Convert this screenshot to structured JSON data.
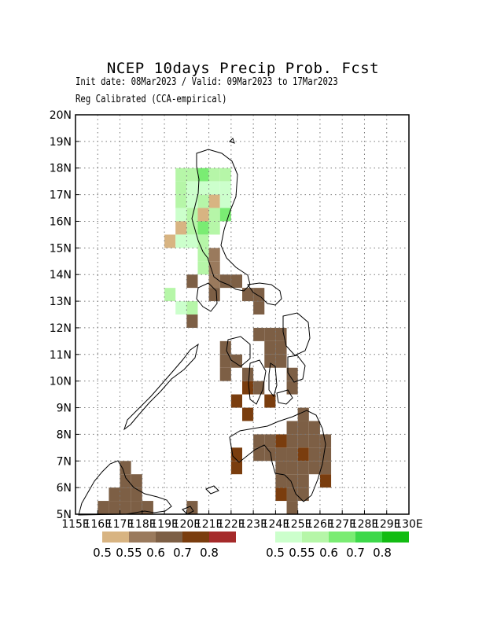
{
  "header": {
    "title": "NCEP 10days Precip Prob. Fcst",
    "subtitle": "Init date: 08Mar2023 / Valid: 09Mar2023 to 17Mar2023",
    "method": "Reg Calibrated (CCA-empirical)"
  },
  "axes": {
    "lon_ticks": [
      "115E",
      "116E",
      "117E",
      "118E",
      "119E",
      "120E",
      "121E",
      "122E",
      "123E",
      "124E",
      "125E",
      "126E",
      "127E",
      "128E",
      "129E",
      "130E"
    ],
    "lat_ticks": [
      "5N",
      "6N",
      "7N",
      "8N",
      "9N",
      "10N",
      "11N",
      "12N",
      "13N",
      "14N",
      "15N",
      "16N",
      "17N",
      "18N",
      "19N",
      "20N"
    ],
    "lon_range": [
      115,
      130
    ],
    "lat_range": [
      5,
      20
    ],
    "grid": "dotted"
  },
  "legend": {
    "dry": {
      "colors": [
        "#d8b482",
        "#9a7a5d",
        "#7d5f45",
        "#7a3d0e",
        "#a52a2a"
      ],
      "labels": [
        "0.5",
        "0.55",
        "0.6",
        "0.7",
        "0.8"
      ]
    },
    "wet": {
      "colors": [
        "#ccffcc",
        "#b6f6a8",
        "#7aec73",
        "#3dd84a",
        "#12bc12"
      ],
      "labels": [
        "0.5",
        "0.55",
        "0.6",
        "0.7",
        "0.8"
      ]
    }
  },
  "chart_data": {
    "type": "heatmap",
    "cell_size_deg": 0.5,
    "cells": [
      {
        "lon": 119.5,
        "lat": 17.5,
        "level": "wet-0.55"
      },
      {
        "lon": 120.0,
        "lat": 17.5,
        "level": "wet-0.55"
      },
      {
        "lon": 120.5,
        "lat": 17.5,
        "level": "wet-0.6"
      },
      {
        "lon": 121.0,
        "lat": 17.5,
        "level": "wet-0.55"
      },
      {
        "lon": 121.5,
        "lat": 17.5,
        "level": "wet-0.55"
      },
      {
        "lon": 119.5,
        "lat": 17.0,
        "level": "wet-0.55"
      },
      {
        "lon": 120.0,
        "lat": 17.0,
        "level": "wet-0.5"
      },
      {
        "lon": 120.5,
        "lat": 17.0,
        "level": "wet-0.5"
      },
      {
        "lon": 121.0,
        "lat": 17.0,
        "level": "wet-0.5"
      },
      {
        "lon": 121.5,
        "lat": 17.0,
        "level": "wet-0.5"
      },
      {
        "lon": 119.5,
        "lat": 16.5,
        "level": "wet-0.55"
      },
      {
        "lon": 120.0,
        "lat": 16.5,
        "level": "wet-0.5"
      },
      {
        "lon": 120.5,
        "lat": 16.5,
        "level": "wet-0.55"
      },
      {
        "lon": 121.0,
        "lat": 16.5,
        "level": "dry-0.5"
      },
      {
        "lon": 121.5,
        "lat": 16.5,
        "level": "wet-0.5"
      },
      {
        "lon": 119.5,
        "lat": 16.0,
        "level": "wet-0.5"
      },
      {
        "lon": 120.0,
        "lat": 16.0,
        "level": "wet-0.55"
      },
      {
        "lon": 120.5,
        "lat": 16.0,
        "level": "dry-0.5"
      },
      {
        "lon": 121.0,
        "lat": 16.0,
        "level": "wet-0.55"
      },
      {
        "lon": 121.5,
        "lat": 16.0,
        "level": "wet-0.6"
      },
      {
        "lon": 119.5,
        "lat": 15.5,
        "level": "dry-0.5"
      },
      {
        "lon": 120.0,
        "lat": 15.5,
        "level": "wet-0.55"
      },
      {
        "lon": 120.5,
        "lat": 15.5,
        "level": "wet-0.6"
      },
      {
        "lon": 121.0,
        "lat": 15.5,
        "level": "wet-0.55"
      },
      {
        "lon": 119.0,
        "lat": 15.0,
        "level": "dry-0.5"
      },
      {
        "lon": 119.5,
        "lat": 15.0,
        "level": "wet-0.5"
      },
      {
        "lon": 120.0,
        "lat": 15.0,
        "level": "wet-0.5"
      },
      {
        "lon": 120.5,
        "lat": 15.0,
        "level": "wet-0.55"
      },
      {
        "lon": 120.5,
        "lat": 14.5,
        "level": "wet-0.55"
      },
      {
        "lon": 121.0,
        "lat": 14.5,
        "level": "dry-0.55"
      },
      {
        "lon": 120.5,
        "lat": 14.0,
        "level": "wet-0.55"
      },
      {
        "lon": 121.0,
        "lat": 14.0,
        "level": "dry-0.55"
      },
      {
        "lon": 120.0,
        "lat": 13.5,
        "level": "dry-0.6"
      },
      {
        "lon": 121.0,
        "lat": 13.5,
        "level": "dry-0.55"
      },
      {
        "lon": 121.5,
        "lat": 13.5,
        "level": "dry-0.6"
      },
      {
        "lon": 122.0,
        "lat": 13.5,
        "level": "dry-0.6"
      },
      {
        "lon": 119.0,
        "lat": 13.0,
        "level": "wet-0.55"
      },
      {
        "lon": 121.0,
        "lat": 13.0,
        "level": "dry-0.6"
      },
      {
        "lon": 122.5,
        "lat": 13.0,
        "level": "dry-0.6"
      },
      {
        "lon": 123.0,
        "lat": 13.0,
        "level": "dry-0.6"
      },
      {
        "lon": 119.5,
        "lat": 12.5,
        "level": "wet-0.5"
      },
      {
        "lon": 120.0,
        "lat": 12.5,
        "level": "wet-0.55"
      },
      {
        "lon": 123.0,
        "lat": 12.5,
        "level": "dry-0.6"
      },
      {
        "lon": 120.0,
        "lat": 12.0,
        "level": "dry-0.6"
      },
      {
        "lon": 123.0,
        "lat": 11.5,
        "level": "dry-0.6"
      },
      {
        "lon": 123.5,
        "lat": 11.5,
        "level": "dry-0.6"
      },
      {
        "lon": 124.0,
        "lat": 11.5,
        "level": "dry-0.6"
      },
      {
        "lon": 121.5,
        "lat": 11.0,
        "level": "dry-0.6"
      },
      {
        "lon": 123.5,
        "lat": 11.0,
        "level": "dry-0.6"
      },
      {
        "lon": 124.0,
        "lat": 11.0,
        "level": "dry-0.6"
      },
      {
        "lon": 121.5,
        "lat": 10.5,
        "level": "dry-0.6"
      },
      {
        "lon": 122.0,
        "lat": 10.5,
        "level": "dry-0.6"
      },
      {
        "lon": 123.5,
        "lat": 10.5,
        "level": "dry-0.6"
      },
      {
        "lon": 124.0,
        "lat": 10.5,
        "level": "dry-0.6"
      },
      {
        "lon": 121.5,
        "lat": 10.0,
        "level": "dry-0.6"
      },
      {
        "lon": 122.5,
        "lat": 10.0,
        "level": "dry-0.6"
      },
      {
        "lon": 124.5,
        "lat": 10.0,
        "level": "dry-0.6"
      },
      {
        "lon": 122.5,
        "lat": 9.5,
        "level": "dry-0.7"
      },
      {
        "lon": 123.0,
        "lat": 9.5,
        "level": "dry-0.6"
      },
      {
        "lon": 124.5,
        "lat": 9.5,
        "level": "dry-0.6"
      },
      {
        "lon": 122.0,
        "lat": 9.0,
        "level": "dry-0.7"
      },
      {
        "lon": 123.5,
        "lat": 9.0,
        "level": "dry-0.7"
      },
      {
        "lon": 122.5,
        "lat": 8.5,
        "level": "dry-0.7"
      },
      {
        "lon": 125.0,
        "lat": 8.5,
        "level": "dry-0.6"
      },
      {
        "lon": 124.5,
        "lat": 8.0,
        "level": "dry-0.6"
      },
      {
        "lon": 125.0,
        "lat": 8.0,
        "level": "dry-0.6"
      },
      {
        "lon": 125.5,
        "lat": 8.0,
        "level": "dry-0.6"
      },
      {
        "lon": 123.0,
        "lat": 7.5,
        "level": "dry-0.6"
      },
      {
        "lon": 123.5,
        "lat": 7.5,
        "level": "dry-0.6"
      },
      {
        "lon": 124.0,
        "lat": 7.5,
        "level": "dry-0.7"
      },
      {
        "lon": 124.5,
        "lat": 7.5,
        "level": "dry-0.6"
      },
      {
        "lon": 125.0,
        "lat": 7.5,
        "level": "dry-0.6"
      },
      {
        "lon": 125.5,
        "lat": 7.5,
        "level": "dry-0.6"
      },
      {
        "lon": 126.0,
        "lat": 7.5,
        "level": "dry-0.6"
      },
      {
        "lon": 122.0,
        "lat": 7.0,
        "level": "dry-0.7"
      },
      {
        "lon": 123.0,
        "lat": 7.0,
        "level": "dry-0.6"
      },
      {
        "lon": 123.5,
        "lat": 7.0,
        "level": "dry-0.6"
      },
      {
        "lon": 124.0,
        "lat": 7.0,
        "level": "dry-0.6"
      },
      {
        "lon": 124.5,
        "lat": 7.0,
        "level": "dry-0.6"
      },
      {
        "lon": 125.0,
        "lat": 7.0,
        "level": "dry-0.7"
      },
      {
        "lon": 125.5,
        "lat": 7.0,
        "level": "dry-0.6"
      },
      {
        "lon": 126.0,
        "lat": 7.0,
        "level": "dry-0.6"
      },
      {
        "lon": 117.0,
        "lat": 6.5,
        "level": "dry-0.6"
      },
      {
        "lon": 122.0,
        "lat": 6.5,
        "level": "dry-0.7"
      },
      {
        "lon": 124.0,
        "lat": 6.5,
        "level": "dry-0.6"
      },
      {
        "lon": 124.5,
        "lat": 6.5,
        "level": "dry-0.6"
      },
      {
        "lon": 125.0,
        "lat": 6.5,
        "level": "dry-0.6"
      },
      {
        "lon": 125.5,
        "lat": 6.5,
        "level": "dry-0.6"
      },
      {
        "lon": 126.0,
        "lat": 6.5,
        "level": "dry-0.6"
      },
      {
        "lon": 117.0,
        "lat": 6.0,
        "level": "dry-0.6"
      },
      {
        "lon": 117.5,
        "lat": 6.0,
        "level": "dry-0.6"
      },
      {
        "lon": 124.0,
        "lat": 6.0,
        "level": "dry-0.6"
      },
      {
        "lon": 124.5,
        "lat": 6.0,
        "level": "dry-0.6"
      },
      {
        "lon": 125.0,
        "lat": 6.0,
        "level": "dry-0.6"
      },
      {
        "lon": 126.0,
        "lat": 6.0,
        "level": "dry-0.7"
      },
      {
        "lon": 116.5,
        "lat": 5.5,
        "level": "dry-0.6"
      },
      {
        "lon": 117.0,
        "lat": 5.5,
        "level": "dry-0.6"
      },
      {
        "lon": 117.5,
        "lat": 5.5,
        "level": "dry-0.6"
      },
      {
        "lon": 124.0,
        "lat": 5.5,
        "level": "dry-0.7"
      },
      {
        "lon": 124.5,
        "lat": 5.5,
        "level": "dry-0.6"
      },
      {
        "lon": 125.0,
        "lat": 5.5,
        "level": "dry-0.6"
      },
      {
        "lon": 116.0,
        "lat": 5.0,
        "level": "dry-0.6"
      },
      {
        "lon": 116.5,
        "lat": 5.0,
        "level": "dry-0.6"
      },
      {
        "lon": 117.0,
        "lat": 5.0,
        "level": "dry-0.6"
      },
      {
        "lon": 117.5,
        "lat": 5.0,
        "level": "dry-0.6"
      },
      {
        "lon": 118.0,
        "lat": 5.0,
        "level": "dry-0.6"
      },
      {
        "lon": 124.5,
        "lat": 5.0,
        "level": "dry-0.6"
      },
      {
        "lon": 120.0,
        "lat": 5.0,
        "level": "dry-0.6"
      }
    ]
  }
}
